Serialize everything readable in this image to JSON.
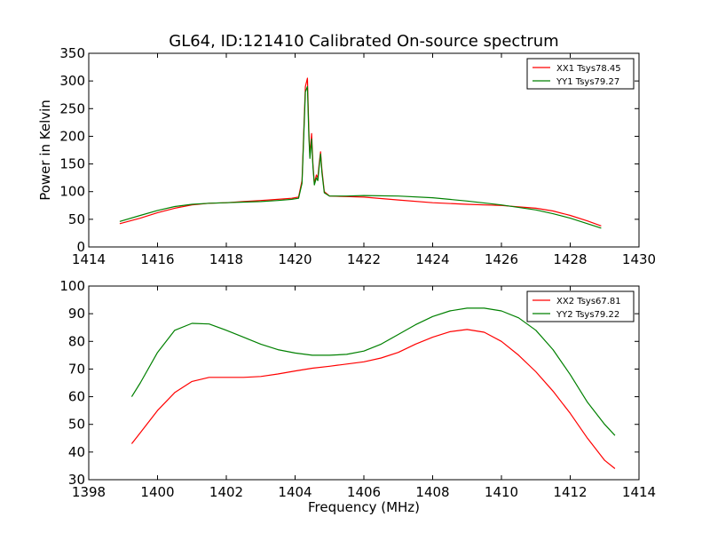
{
  "chart_data": [
    {
      "type": "line",
      "title": "GL64, ID:121410 Calibrated On-source spectrum",
      "ylabel": "Power in Kelvin",
      "xlabel": "",
      "xlim": [
        1414,
        1430
      ],
      "ylim": [
        0,
        350
      ],
      "xticks": [
        "1414",
        "1416",
        "1418",
        "1420",
        "1422",
        "1424",
        "1426",
        "1428",
        "1430"
      ],
      "yticks": [
        "0",
        "50",
        "100",
        "150",
        "200",
        "250",
        "300",
        "350"
      ],
      "grid": false,
      "legend": "top-right",
      "series": [
        {
          "name": "XX1 Tsys78.45",
          "color": "#ff0000",
          "points": [
            [
              1414.9,
              42
            ],
            [
              1415.5,
              52
            ],
            [
              1416.0,
              62
            ],
            [
              1416.5,
              70
            ],
            [
              1417.0,
              76
            ],
            [
              1417.5,
              79
            ],
            [
              1418.0,
              80
            ],
            [
              1418.5,
              82
            ],
            [
              1419.0,
              84
            ],
            [
              1419.5,
              86
            ],
            [
              1419.9,
              88
            ],
            [
              1420.1,
              90
            ],
            [
              1420.2,
              120
            ],
            [
              1420.3,
              290
            ],
            [
              1420.36,
              305
            ],
            [
              1420.4,
              210
            ],
            [
              1420.43,
              165
            ],
            [
              1420.48,
              205
            ],
            [
              1420.52,
              150
            ],
            [
              1420.56,
              115
            ],
            [
              1420.62,
              130
            ],
            [
              1420.66,
              125
            ],
            [
              1420.7,
              150
            ],
            [
              1420.74,
              172
            ],
            [
              1420.78,
              140
            ],
            [
              1420.85,
              100
            ],
            [
              1421.0,
              92
            ],
            [
              1421.5,
              91
            ],
            [
              1422.0,
              90
            ],
            [
              1423.0,
              85
            ],
            [
              1424.0,
              80
            ],
            [
              1425.0,
              77
            ],
            [
              1426.0,
              75
            ],
            [
              1427.0,
              70
            ],
            [
              1427.5,
              65
            ],
            [
              1428.0,
              57
            ],
            [
              1428.5,
              47
            ],
            [
              1428.9,
              38
            ]
          ]
        },
        {
          "name": "YY1 Tsys79.27",
          "color": "#008000",
          "points": [
            [
              1414.9,
              46
            ],
            [
              1415.5,
              57
            ],
            [
              1416.0,
              66
            ],
            [
              1416.5,
              73
            ],
            [
              1417.0,
              77
            ],
            [
              1417.5,
              79
            ],
            [
              1418.0,
              80
            ],
            [
              1418.5,
              81
            ],
            [
              1419.0,
              82
            ],
            [
              1419.5,
              84
            ],
            [
              1419.9,
              86
            ],
            [
              1420.1,
              88
            ],
            [
              1420.2,
              115
            ],
            [
              1420.3,
              280
            ],
            [
              1420.36,
              290
            ],
            [
              1420.4,
              200
            ],
            [
              1420.43,
              160
            ],
            [
              1420.48,
              195
            ],
            [
              1420.52,
              145
            ],
            [
              1420.56,
              112
            ],
            [
              1420.62,
              125
            ],
            [
              1420.66,
              120
            ],
            [
              1420.7,
              145
            ],
            [
              1420.74,
              168
            ],
            [
              1420.78,
              135
            ],
            [
              1420.85,
              98
            ],
            [
              1421.0,
              92
            ],
            [
              1421.5,
              92
            ],
            [
              1422.0,
              93
            ],
            [
              1423.0,
              92
            ],
            [
              1424.0,
              89
            ],
            [
              1425.0,
              83
            ],
            [
              1426.0,
              76
            ],
            [
              1427.0,
              67
            ],
            [
              1427.5,
              60
            ],
            [
              1428.0,
              52
            ],
            [
              1428.5,
              42
            ],
            [
              1428.9,
              34
            ]
          ]
        }
      ]
    },
    {
      "type": "line",
      "title": "",
      "xlabel": "Frequency (MHz)",
      "ylabel": "",
      "xlim": [
        1398,
        1414
      ],
      "ylim": [
        30,
        100
      ],
      "xticks": [
        "1398",
        "1400",
        "1402",
        "1404",
        "1406",
        "1408",
        "1410",
        "1412",
        "1414"
      ],
      "yticks": [
        "30",
        "40",
        "50",
        "60",
        "70",
        "80",
        "90",
        "100"
      ],
      "grid": false,
      "legend": "top-right",
      "series": [
        {
          "name": "XX2 Tsys67.81",
          "color": "#ff0000",
          "points": [
            [
              1399.25,
              43
            ],
            [
              1399.5,
              47
            ],
            [
              1400.0,
              55
            ],
            [
              1400.5,
              61.5
            ],
            [
              1401.0,
              65.5
            ],
            [
              1401.5,
              67
            ],
            [
              1402.0,
              67
            ],
            [
              1402.5,
              67
            ],
            [
              1403.0,
              67.3
            ],
            [
              1403.5,
              68.2
            ],
            [
              1404.0,
              69.3
            ],
            [
              1404.5,
              70.3
            ],
            [
              1405.0,
              71
            ],
            [
              1405.5,
              71.8
            ],
            [
              1406.0,
              72.6
            ],
            [
              1406.5,
              74
            ],
            [
              1407.0,
              76
            ],
            [
              1407.5,
              79
            ],
            [
              1408.0,
              81.5
            ],
            [
              1408.5,
              83.5
            ],
            [
              1409.0,
              84.3
            ],
            [
              1409.5,
              83.3
            ],
            [
              1410.0,
              80
            ],
            [
              1410.5,
              75
            ],
            [
              1411.0,
              69
            ],
            [
              1411.5,
              62
            ],
            [
              1412.0,
              54
            ],
            [
              1412.5,
              45
            ],
            [
              1413.0,
              37
            ],
            [
              1413.3,
              34
            ]
          ]
        },
        {
          "name": "YY2 Tsys79.22",
          "color": "#008000",
          "points": [
            [
              1399.25,
              60
            ],
            [
              1399.5,
              65
            ],
            [
              1400.0,
              76
            ],
            [
              1400.5,
              84
            ],
            [
              1401.0,
              86.5
            ],
            [
              1401.5,
              86.3
            ],
            [
              1402.0,
              84
            ],
            [
              1402.5,
              81.5
            ],
            [
              1403.0,
              79
            ],
            [
              1403.5,
              77
            ],
            [
              1404.0,
              75.8
            ],
            [
              1404.5,
              75
            ],
            [
              1405.0,
              75
            ],
            [
              1405.5,
              75.3
            ],
            [
              1406.0,
              76.5
            ],
            [
              1406.5,
              79
            ],
            [
              1407.0,
              82.5
            ],
            [
              1407.5,
              86
            ],
            [
              1408.0,
              89
            ],
            [
              1408.5,
              91
            ],
            [
              1409.0,
              92
            ],
            [
              1409.5,
              92
            ],
            [
              1410.0,
              91
            ],
            [
              1410.5,
              88.5
            ],
            [
              1411.0,
              84
            ],
            [
              1411.5,
              77
            ],
            [
              1412.0,
              68
            ],
            [
              1412.5,
              58
            ],
            [
              1413.0,
              50
            ],
            [
              1413.3,
              46
            ]
          ]
        }
      ]
    }
  ]
}
